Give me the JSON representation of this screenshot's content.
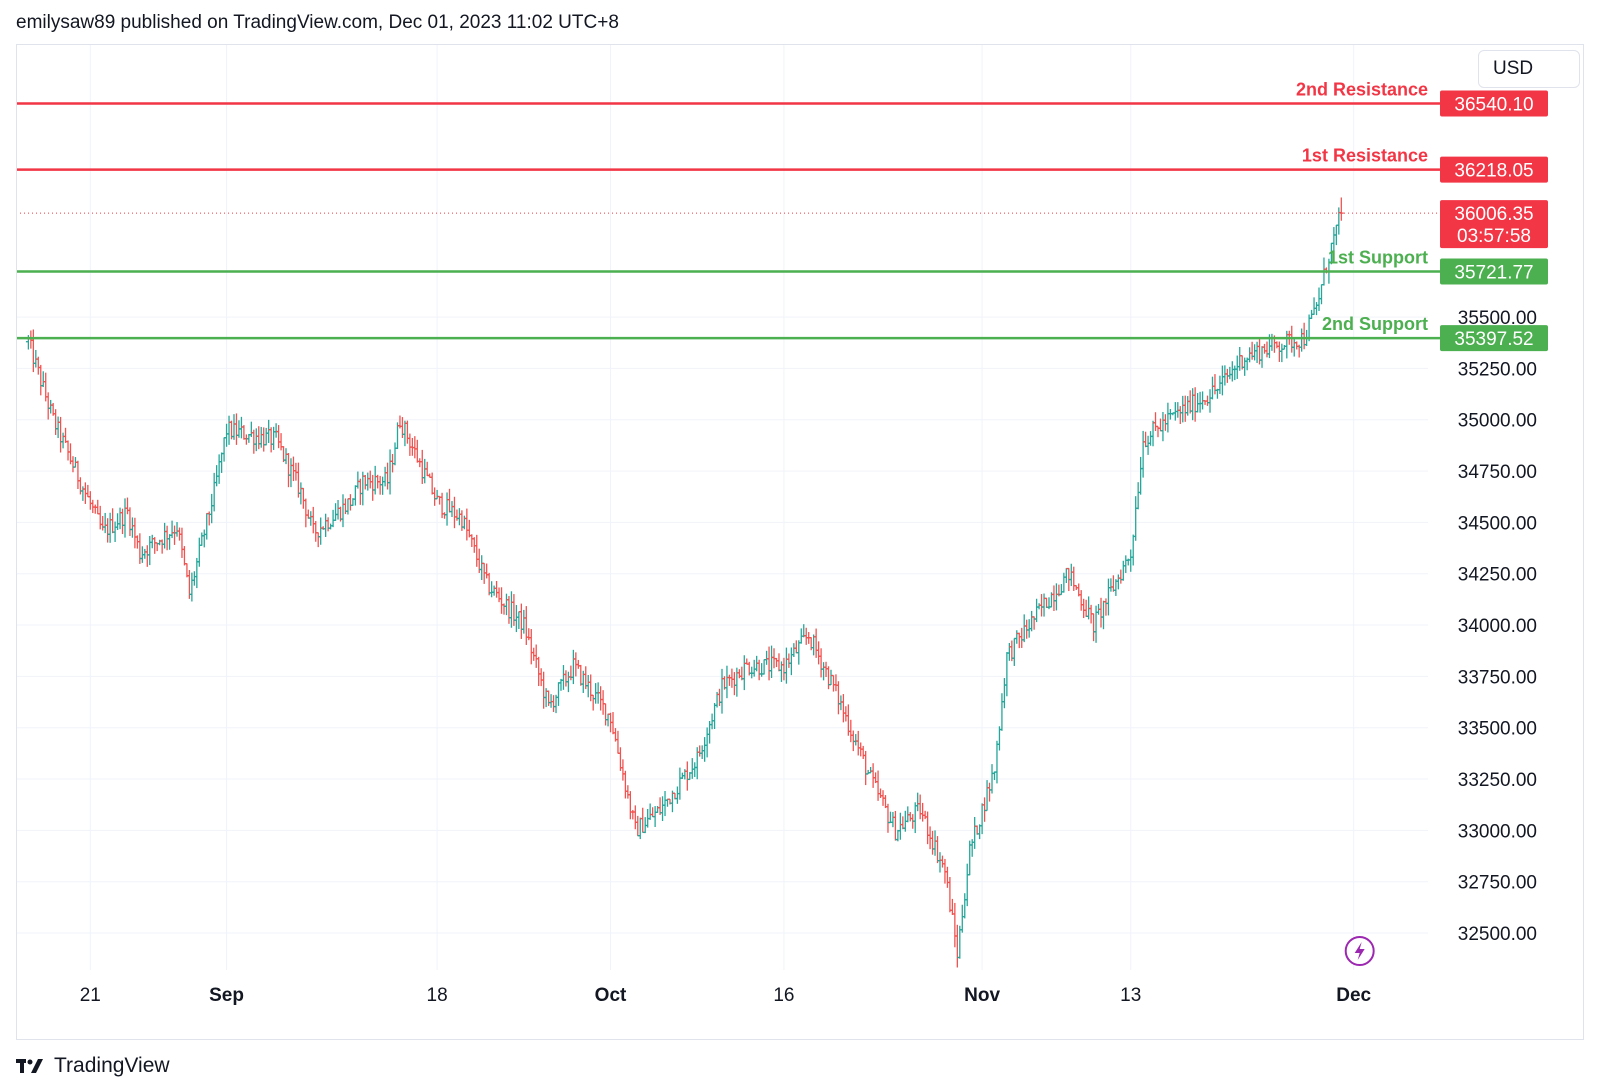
{
  "header": {
    "text": "emilysaw89 published on TradingView.com, Dec 01, 2023 11:02 UTC+8"
  },
  "footer": {
    "brand": "TradingView",
    "logo_icon": "tradingview-logo-icon"
  },
  "currency_button": {
    "label": "USD"
  },
  "colors": {
    "up": "#26a69a",
    "down": "#ef5350",
    "resistance": "#f23645",
    "support": "#4caf50",
    "grid": "#f0f3fa",
    "text": "#131722",
    "lightning": "#9c27b0"
  },
  "chart_data": {
    "type": "ohlc",
    "x_tick_labels": [
      {
        "date": "2023-08-21",
        "label": "21",
        "bold": false
      },
      {
        "date": "2023-09-01",
        "label": "Sep",
        "bold": true
      },
      {
        "date": "2023-09-18",
        "label": "18",
        "bold": false
      },
      {
        "date": "2023-10-02",
        "label": "Oct",
        "bold": true
      },
      {
        "date": "2023-10-16",
        "label": "16",
        "bold": false
      },
      {
        "date": "2023-11-01",
        "label": "Nov",
        "bold": true
      },
      {
        "date": "2023-11-13",
        "label": "13",
        "bold": false
      },
      {
        "date": "2023-12-01",
        "label": "Dec",
        "bold": true
      }
    ],
    "y_tick_labels": [
      "35500.00",
      "35250.00",
      "35000.00",
      "34750.00",
      "34500.00",
      "34250.00",
      "34000.00",
      "33750.00",
      "33500.00",
      "33250.00",
      "33000.00",
      "32750.00",
      "32500.00"
    ],
    "ylim": [
      32320,
      36830
    ],
    "xlim": [
      "2023-08-15",
      "2023-12-07"
    ],
    "grid": true,
    "levels": [
      {
        "name": "2nd Resistance",
        "value": "36540.10",
        "kind": "resistance"
      },
      {
        "name": "1st Resistance",
        "value": "36218.05",
        "kind": "resistance"
      },
      {
        "name": "1st Support",
        "value": "35721.77",
        "kind": "support"
      },
      {
        "name": "2nd Support",
        "value": "35397.52",
        "kind": "support"
      }
    ],
    "last_price": {
      "value": "36006.35",
      "countdown": "03:57:58"
    },
    "price_path": [
      [
        "2023-08-16",
        35380
      ],
      [
        "2023-08-18",
        35000
      ],
      [
        "2023-08-22",
        34450
      ],
      [
        "2023-08-24",
        34550
      ],
      [
        "2023-08-25",
        34350
      ],
      [
        "2023-08-28",
        34480
      ],
      [
        "2023-08-29",
        34150
      ],
      [
        "2023-08-31",
        34650
      ],
      [
        "2023-09-01",
        34950
      ],
      [
        "2023-09-05",
        34900
      ],
      [
        "2023-09-07",
        34650
      ],
      [
        "2023-09-08",
        34450
      ],
      [
        "2023-09-11",
        34600
      ],
      [
        "2023-09-12",
        34700
      ],
      [
        "2023-09-14",
        34700
      ],
      [
        "2023-09-15",
        35000
      ],
      [
        "2023-09-18",
        34600
      ],
      [
        "2023-09-20",
        34520
      ],
      [
        "2023-09-22",
        34200
      ],
      [
        "2023-09-25",
        34000
      ],
      [
        "2023-09-27",
        33600
      ],
      [
        "2023-09-29",
        33800
      ],
      [
        "2023-10-02",
        33550
      ],
      [
        "2023-10-04",
        33000
      ],
      [
        "2023-10-06",
        33100
      ],
      [
        "2023-10-09",
        33350
      ],
      [
        "2023-10-11",
        33700
      ],
      [
        "2023-10-13",
        33800
      ],
      [
        "2023-10-16",
        33800
      ],
      [
        "2023-10-18",
        33950
      ],
      [
        "2023-10-20",
        33700
      ],
      [
        "2023-10-23",
        33250
      ],
      [
        "2023-10-25",
        33000
      ],
      [
        "2023-10-27",
        33100
      ],
      [
        "2023-10-29",
        32800
      ],
      [
        "2023-10-30",
        32400
      ],
      [
        "2023-10-31",
        32900
      ],
      [
        "2023-11-02",
        33300
      ],
      [
        "2023-11-03",
        33850
      ],
      [
        "2023-11-06",
        34100
      ],
      [
        "2023-11-08",
        34250
      ],
      [
        "2023-11-10",
        34000
      ],
      [
        "2023-11-13",
        34350
      ],
      [
        "2023-11-14",
        34900
      ],
      [
        "2023-11-16",
        35000
      ],
      [
        "2023-11-20",
        35150
      ],
      [
        "2023-11-22",
        35300
      ],
      [
        "2023-11-24",
        35350
      ],
      [
        "2023-11-27",
        35400
      ],
      [
        "2023-11-28",
        35550
      ],
      [
        "2023-11-29",
        35800
      ],
      [
        "2023-11-30",
        36006
      ]
    ]
  }
}
